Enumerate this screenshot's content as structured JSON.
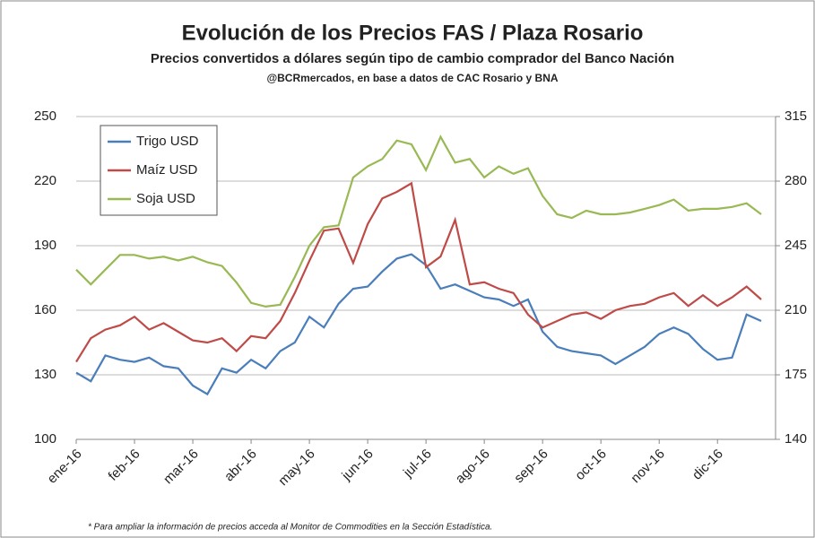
{
  "chart_data": {
    "type": "line",
    "title": "Evolución de los Precios FAS / Plaza Rosario",
    "subtitle": "Precios convertidos a dólares según tipo de cambio comprador del Banco Nación",
    "source": "@BCRmercados, en base a datos de CAC Rosario y BNA",
    "footnote": "* Para ampliar la información de precios acceda al Monitor de Commodities en la Sección Estadística.",
    "categories": [
      "ene-16",
      null,
      null,
      null,
      "feb-16",
      null,
      null,
      null,
      "mar-16",
      null,
      null,
      null,
      "abr-16",
      null,
      null,
      null,
      "may-16",
      null,
      null,
      null,
      "jun-16",
      null,
      null,
      null,
      "jul-16",
      null,
      null,
      null,
      "ago-16",
      null,
      null,
      null,
      "sep-16",
      null,
      null,
      null,
      "oct-16",
      null,
      null,
      null,
      "nov-16",
      null,
      null,
      null,
      "dic-16",
      null,
      null,
      null
    ],
    "ylim": [
      100,
      250
    ],
    "yticks": [
      100,
      130,
      160,
      190,
      220,
      250
    ],
    "y2lim": [
      140,
      315
    ],
    "y2ticks": [
      140,
      175,
      210,
      245,
      280,
      315
    ],
    "grid": true,
    "legend": "upper left",
    "series": [
      {
        "name": "Trigo USD",
        "color": "#4a7ebb",
        "values": [
          131,
          127,
          139,
          137,
          136,
          138,
          134,
          133,
          125,
          121,
          133,
          131,
          137,
          133,
          141,
          145,
          157,
          152,
          163,
          170,
          171,
          178,
          184,
          186,
          181,
          170,
          172,
          169,
          166,
          165,
          162,
          165,
          150,
          143,
          141,
          140,
          139,
          135,
          139,
          143,
          149,
          152,
          149,
          142,
          137,
          138,
          158,
          155
        ]
      },
      {
        "name": "Maíz USD",
        "color": "#be4b48",
        "values": [
          136,
          147,
          151,
          153,
          157,
          151,
          154,
          150,
          146,
          145,
          147,
          141,
          148,
          147,
          155,
          168,
          183,
          197,
          198,
          182,
          200,
          212,
          215,
          219,
          180,
          185,
          202,
          172,
          173,
          170,
          168,
          158,
          152,
          155,
          158,
          159,
          156,
          160,
          162,
          163,
          166,
          168,
          162,
          167,
          162,
          166,
          171,
          165
        ]
      },
      {
        "name": "Soja USD",
        "color": "#98b954",
        "axis": "y2",
        "values": [
          232,
          224,
          232,
          240,
          240,
          238,
          239,
          237,
          239,
          236,
          234,
          225,
          214,
          212,
          213,
          228,
          245,
          255,
          256,
          282,
          288,
          292,
          302,
          300,
          286,
          304,
          290,
          292,
          282,
          288,
          284,
          287,
          272,
          262,
          260,
          264,
          262,
          262,
          263,
          265,
          267,
          270,
          264,
          265,
          265,
          266,
          268,
          262
        ]
      }
    ]
  }
}
